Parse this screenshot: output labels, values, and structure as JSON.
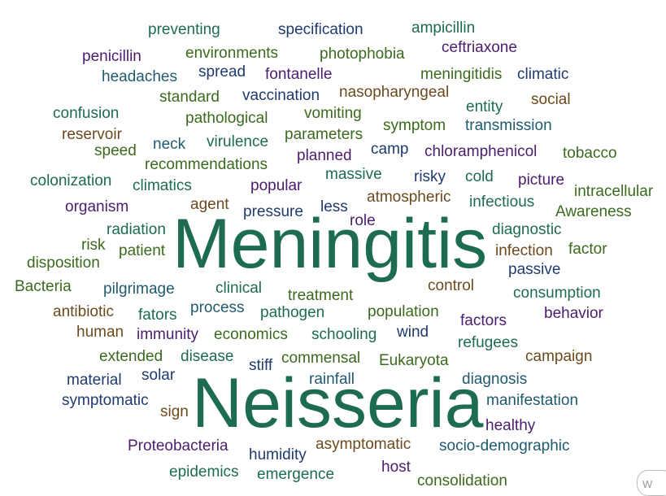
{
  "colors": {
    "teal": "#1d6b52",
    "green": "#3b6a1e",
    "navy": "#1f3a6e",
    "purple": "#4b1d6e",
    "brown": "#6b4a1d",
    "tealblue": "#1f5a6e"
  },
  "words": [
    {
      "text": "preventing",
      "color": "teal"
    },
    {
      "text": "specification",
      "color": "navy"
    },
    {
      "text": "ampicillin",
      "color": "teal"
    },
    {
      "text": "ceftriaxone",
      "color": "purple"
    },
    {
      "text": "penicillin",
      "color": "purple"
    },
    {
      "text": "environments",
      "color": "green"
    },
    {
      "text": "photophobia",
      "color": "green"
    },
    {
      "text": "headaches",
      "color": "tealblue"
    },
    {
      "text": "spread",
      "color": "navy"
    },
    {
      "text": "fontanelle",
      "color": "purple"
    },
    {
      "text": "meningitidis",
      "color": "green"
    },
    {
      "text": "climatic",
      "color": "navy"
    },
    {
      "text": "standard",
      "color": "green"
    },
    {
      "text": "vaccination",
      "color": "navy"
    },
    {
      "text": "nasopharyngeal",
      "color": "brown"
    },
    {
      "text": "entity",
      "color": "teal"
    },
    {
      "text": "social",
      "color": "brown"
    },
    {
      "text": "confusion",
      "color": "teal"
    },
    {
      "text": "pathological",
      "color": "green"
    },
    {
      "text": "vomiting",
      "color": "green"
    },
    {
      "text": "symptom",
      "color": "green"
    },
    {
      "text": "transmission",
      "color": "tealblue"
    },
    {
      "text": "reservoir",
      "color": "brown"
    },
    {
      "text": "parameters",
      "color": "green"
    },
    {
      "text": "neck",
      "color": "tealblue"
    },
    {
      "text": "virulence",
      "color": "teal"
    },
    {
      "text": "speed",
      "color": "green"
    },
    {
      "text": "planned",
      "color": "purple"
    },
    {
      "text": "camp",
      "color": "navy"
    },
    {
      "text": "chloramphenicol",
      "color": "purple"
    },
    {
      "text": "tobacco",
      "color": "green"
    },
    {
      "text": "recommendations",
      "color": "green"
    },
    {
      "text": "colonization",
      "color": "teal"
    },
    {
      "text": "climatics",
      "color": "teal"
    },
    {
      "text": "massive",
      "color": "teal"
    },
    {
      "text": "risky",
      "color": "navy"
    },
    {
      "text": "cold",
      "color": "teal"
    },
    {
      "text": "picture",
      "color": "purple"
    },
    {
      "text": "popular",
      "color": "purple"
    },
    {
      "text": "intracellular",
      "color": "green"
    },
    {
      "text": "organism",
      "color": "purple"
    },
    {
      "text": "agent",
      "color": "brown"
    },
    {
      "text": "less",
      "color": "navy"
    },
    {
      "text": "atmospheric",
      "color": "brown"
    },
    {
      "text": "infectious",
      "color": "teal"
    },
    {
      "text": "pressure",
      "color": "navy"
    },
    {
      "text": "role",
      "color": "purple"
    },
    {
      "text": "Awareness",
      "color": "green"
    },
    {
      "text": "radiation",
      "color": "teal"
    },
    {
      "text": "Meningitis",
      "color": "teal"
    },
    {
      "text": "diagnostic",
      "color": "teal"
    },
    {
      "text": "risk",
      "color": "green"
    },
    {
      "text": "patient",
      "color": "green"
    },
    {
      "text": "infection",
      "color": "brown"
    },
    {
      "text": "factor",
      "color": "green"
    },
    {
      "text": "disposition",
      "color": "green"
    },
    {
      "text": "passive",
      "color": "navy"
    },
    {
      "text": "Bacteria",
      "color": "green"
    },
    {
      "text": "pilgrimage",
      "color": "tealblue"
    },
    {
      "text": "clinical",
      "color": "teal"
    },
    {
      "text": "control",
      "color": "brown"
    },
    {
      "text": "treatment",
      "color": "green"
    },
    {
      "text": "consumption",
      "color": "teal"
    },
    {
      "text": "antibiotic",
      "color": "brown"
    },
    {
      "text": "fators",
      "color": "teal"
    },
    {
      "text": "process",
      "color": "tealblue"
    },
    {
      "text": "pathogen",
      "color": "teal"
    },
    {
      "text": "population",
      "color": "green"
    },
    {
      "text": "factors",
      "color": "purple"
    },
    {
      "text": "behavior",
      "color": "purple"
    },
    {
      "text": "human",
      "color": "brown"
    },
    {
      "text": "immunity",
      "color": "purple"
    },
    {
      "text": "economics",
      "color": "green"
    },
    {
      "text": "schooling",
      "color": "teal"
    },
    {
      "text": "wind",
      "color": "navy"
    },
    {
      "text": "refugees",
      "color": "teal"
    },
    {
      "text": "extended",
      "color": "green"
    },
    {
      "text": "disease",
      "color": "teal"
    },
    {
      "text": "stiff",
      "color": "navy"
    },
    {
      "text": "commensal",
      "color": "green"
    },
    {
      "text": "Eukaryota",
      "color": "green"
    },
    {
      "text": "campaign",
      "color": "brown"
    },
    {
      "text": "material",
      "color": "navy"
    },
    {
      "text": "solar",
      "color": "navy"
    },
    {
      "text": "rainfall",
      "color": "tealblue"
    },
    {
      "text": "diagnosis",
      "color": "tealblue"
    },
    {
      "text": "symptomatic",
      "color": "navy"
    },
    {
      "text": "Neisseria",
      "color": "teal"
    },
    {
      "text": "manifestation",
      "color": "tealblue"
    },
    {
      "text": "sign",
      "color": "brown"
    },
    {
      "text": "healthy",
      "color": "purple"
    },
    {
      "text": "Proteobacteria",
      "color": "purple"
    },
    {
      "text": "asymptomatic",
      "color": "brown"
    },
    {
      "text": "socio-demographic",
      "color": "tealblue"
    },
    {
      "text": "humidity",
      "color": "navy"
    },
    {
      "text": "epidemics",
      "color": "teal"
    },
    {
      "text": "emergence",
      "color": "teal"
    },
    {
      "text": "host",
      "color": "purple"
    },
    {
      "text": "consolidation",
      "color": "green"
    }
  ]
}
